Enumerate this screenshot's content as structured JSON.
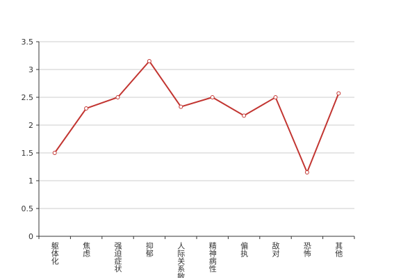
{
  "chart_data": {
    "type": "line",
    "categories": [
      "躯体化",
      "焦虑",
      "强迫症状",
      "抑郁",
      "人际关系敏感",
      "精神病性",
      "偏执",
      "敌对",
      "恐怖",
      "其他"
    ],
    "values": [
      1.5,
      2.3,
      2.5,
      3.15,
      2.33,
      2.5,
      2.17,
      2.5,
      1.15,
      2.57
    ],
    "color": "#c23531",
    "ylim": [
      0,
      3.5
    ],
    "yticks": [
      0,
      0.5,
      1,
      1.5,
      2,
      2.5,
      3,
      3.5
    ],
    "grid": true
  }
}
